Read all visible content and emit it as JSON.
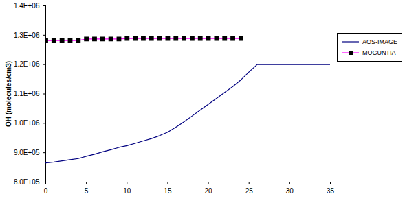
{
  "chart_data": {
    "type": "line",
    "y_label": "OH (molecules/cm3)",
    "x": [
      0,
      1,
      2,
      3,
      4,
      5,
      6,
      7,
      8,
      9,
      10,
      11,
      12,
      13,
      14,
      15,
      16,
      17,
      18,
      19,
      20,
      21,
      22,
      23,
      24,
      25,
      26,
      27,
      28,
      29,
      30,
      31,
      32,
      33,
      34,
      35
    ],
    "series": [
      {
        "name": "AOS-IMAGE",
        "color": "#000080",
        "line_style": "solid",
        "values": [
          865000,
          868000,
          872000,
          876000,
          880000,
          888000,
          895000,
          903000,
          910000,
          918000,
          924000,
          932000,
          940000,
          948000,
          958000,
          970000,
          987000,
          1005000,
          1025000,
          1045000,
          1065000,
          1085000,
          1105000,
          1125000,
          1148000,
          1175000,
          1200000,
          1200000,
          1200000,
          1200000,
          1200000,
          1200000,
          1200000,
          1200000,
          1200000,
          1200000
        ]
      },
      {
        "name": "MOGUNTIA",
        "color": "#ff00ff",
        "marker": "square",
        "line_style": "solid",
        "values": [
          1282000,
          1282000,
          1282000,
          1282000,
          1282000,
          1287000,
          1287000,
          1287000,
          1287000,
          1287000,
          1289000,
          1289000,
          1289000,
          1289000,
          1289000,
          1289000,
          1289000,
          1289000,
          1289000,
          1289000,
          1289000,
          1289000,
          1289000,
          1289000,
          1289000,
          null,
          null,
          null,
          null,
          null,
          null,
          null,
          null,
          null,
          null,
          null
        ]
      }
    ],
    "xlim": [
      0,
      35
    ],
    "xticks": [
      0,
      5,
      10,
      15,
      20,
      25,
      30,
      35
    ],
    "ylim": [
      800000,
      1400000
    ],
    "yticks": [
      {
        "value": 800000,
        "label": "8.0E+05"
      },
      {
        "value": 900000,
        "label": "9.0E+05"
      },
      {
        "value": 1000000,
        "label": "1.0E+06"
      },
      {
        "value": 1100000,
        "label": "1.1E+06"
      },
      {
        "value": 1200000,
        "label": "1.2E+06"
      },
      {
        "value": 1300000,
        "label": "1.3E+06"
      },
      {
        "value": 1400000,
        "label": "1.4E+06"
      }
    ],
    "grid": false,
    "legend": "right"
  }
}
